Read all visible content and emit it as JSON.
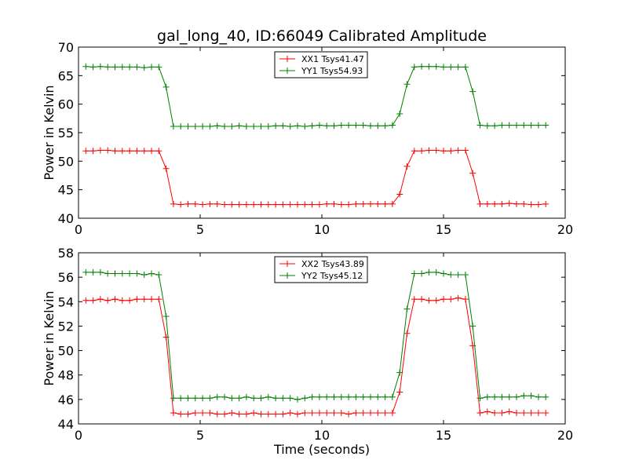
{
  "chart_data": [
    {
      "type": "line",
      "title": "gal_long_40, ID:66049 Calibrated Amplitude",
      "xlabel": "",
      "ylabel": "Power in Kelvin",
      "xlim": [
        0,
        20
      ],
      "ylim": [
        40,
        70
      ],
      "xticks": [
        0,
        5,
        10,
        15,
        20
      ],
      "yticks": [
        40,
        45,
        50,
        55,
        60,
        65,
        70
      ],
      "grid": false,
      "legend_position": "top-center",
      "x": [
        0.3,
        0.6,
        0.9,
        1.2,
        1.5,
        1.8,
        2.1,
        2.4,
        2.7,
        3.0,
        3.3,
        3.6,
        3.9,
        4.2,
        4.5,
        4.8,
        5.1,
        5.4,
        5.7,
        6.0,
        6.3,
        6.6,
        6.9,
        7.2,
        7.5,
        7.8,
        8.1,
        8.4,
        8.7,
        9.0,
        9.3,
        9.6,
        9.9,
        10.2,
        10.5,
        10.8,
        11.1,
        11.4,
        11.7,
        12.0,
        12.3,
        12.6,
        12.9,
        13.2,
        13.5,
        13.8,
        14.1,
        14.4,
        14.7,
        15.0,
        15.3,
        15.6,
        15.9,
        16.2,
        16.5,
        16.8,
        17.1,
        17.4,
        17.7,
        18.0,
        18.3,
        18.6,
        18.9,
        19.2
      ],
      "series": [
        {
          "name": "XX1 Tsys41.47",
          "color": "#ff0000",
          "values": [
            51.8,
            51.8,
            51.9,
            51.9,
            51.8,
            51.8,
            51.8,
            51.8,
            51.8,
            51.8,
            51.8,
            48.7,
            42.5,
            42.4,
            42.5,
            42.5,
            42.4,
            42.5,
            42.5,
            42.4,
            42.4,
            42.4,
            42.4,
            42.4,
            42.4,
            42.4,
            42.4,
            42.4,
            42.4,
            42.4,
            42.4,
            42.4,
            42.4,
            42.5,
            42.5,
            42.4,
            42.4,
            42.5,
            42.5,
            42.5,
            42.5,
            42.5,
            42.5,
            44.2,
            49.1,
            51.8,
            51.8,
            51.9,
            51.9,
            51.8,
            51.8,
            51.9,
            51.9,
            47.9,
            42.5,
            42.5,
            42.5,
            42.5,
            42.6,
            42.5,
            42.5,
            42.4,
            42.4,
            42.5
          ]
        },
        {
          "name": "YY1 Tsys54.93",
          "color": "#008000",
          "values": [
            66.6,
            66.5,
            66.6,
            66.5,
            66.5,
            66.5,
            66.5,
            66.5,
            66.4,
            66.5,
            66.5,
            63.0,
            56.1,
            56.1,
            56.1,
            56.1,
            56.1,
            56.1,
            56.2,
            56.1,
            56.1,
            56.2,
            56.1,
            56.1,
            56.1,
            56.1,
            56.2,
            56.2,
            56.1,
            56.2,
            56.1,
            56.2,
            56.3,
            56.2,
            56.2,
            56.3,
            56.3,
            56.3,
            56.3,
            56.2,
            56.2,
            56.2,
            56.3,
            58.3,
            63.5,
            66.5,
            66.6,
            66.6,
            66.6,
            66.5,
            66.5,
            66.5,
            66.5,
            62.2,
            56.3,
            56.2,
            56.2,
            56.3,
            56.3,
            56.3,
            56.3,
            56.3,
            56.3,
            56.3
          ]
        }
      ]
    },
    {
      "type": "line",
      "title": "",
      "xlabel": "Time (seconds)",
      "ylabel": "Power in Kelvin",
      "xlim": [
        0,
        20
      ],
      "ylim": [
        44,
        58
      ],
      "xticks": [
        0,
        5,
        10,
        15,
        20
      ],
      "yticks": [
        44,
        46,
        48,
        50,
        52,
        54,
        56,
        58
      ],
      "grid": false,
      "legend_position": "top-center",
      "x": [
        0.3,
        0.6,
        0.9,
        1.2,
        1.5,
        1.8,
        2.1,
        2.4,
        2.7,
        3.0,
        3.3,
        3.6,
        3.9,
        4.2,
        4.5,
        4.8,
        5.1,
        5.4,
        5.7,
        6.0,
        6.3,
        6.6,
        6.9,
        7.2,
        7.5,
        7.8,
        8.1,
        8.4,
        8.7,
        9.0,
        9.3,
        9.6,
        9.9,
        10.2,
        10.5,
        10.8,
        11.1,
        11.4,
        11.7,
        12.0,
        12.3,
        12.6,
        12.9,
        13.2,
        13.5,
        13.8,
        14.1,
        14.4,
        14.7,
        15.0,
        15.3,
        15.6,
        15.9,
        16.2,
        16.5,
        16.8,
        17.1,
        17.4,
        17.7,
        18.0,
        18.3,
        18.6,
        18.9,
        19.2
      ],
      "series": [
        {
          "name": "XX2 Tsys43.89",
          "color": "#ff0000",
          "values": [
            54.1,
            54.1,
            54.2,
            54.1,
            54.2,
            54.1,
            54.1,
            54.2,
            54.2,
            54.2,
            54.2,
            51.1,
            44.9,
            44.8,
            44.8,
            44.9,
            44.9,
            44.9,
            44.8,
            44.8,
            44.9,
            44.8,
            44.8,
            44.9,
            44.8,
            44.8,
            44.8,
            44.8,
            44.9,
            44.8,
            44.9,
            44.9,
            44.9,
            44.9,
            44.9,
            44.9,
            44.8,
            44.9,
            44.9,
            44.9,
            44.9,
            44.9,
            44.9,
            46.6,
            51.4,
            54.2,
            54.2,
            54.1,
            54.1,
            54.2,
            54.2,
            54.3,
            54.2,
            50.4,
            44.9,
            45.0,
            44.9,
            44.9,
            45.0,
            44.9,
            44.9,
            44.9,
            44.9,
            44.9
          ]
        },
        {
          "name": "YY2 Tsys45.12",
          "color": "#008000",
          "values": [
            56.4,
            56.4,
            56.4,
            56.3,
            56.3,
            56.3,
            56.3,
            56.3,
            56.2,
            56.3,
            56.2,
            52.8,
            46.1,
            46.1,
            46.1,
            46.1,
            46.1,
            46.1,
            46.2,
            46.2,
            46.1,
            46.1,
            46.2,
            46.1,
            46.1,
            46.2,
            46.1,
            46.1,
            46.1,
            46.0,
            46.1,
            46.2,
            46.2,
            46.2,
            46.2,
            46.2,
            46.2,
            46.2,
            46.2,
            46.2,
            46.2,
            46.2,
            46.2,
            48.2,
            53.4,
            56.3,
            56.3,
            56.4,
            56.4,
            56.3,
            56.2,
            56.2,
            56.2,
            52.0,
            46.1,
            46.2,
            46.2,
            46.2,
            46.2,
            46.2,
            46.3,
            46.3,
            46.2,
            46.2
          ]
        }
      ]
    }
  ]
}
